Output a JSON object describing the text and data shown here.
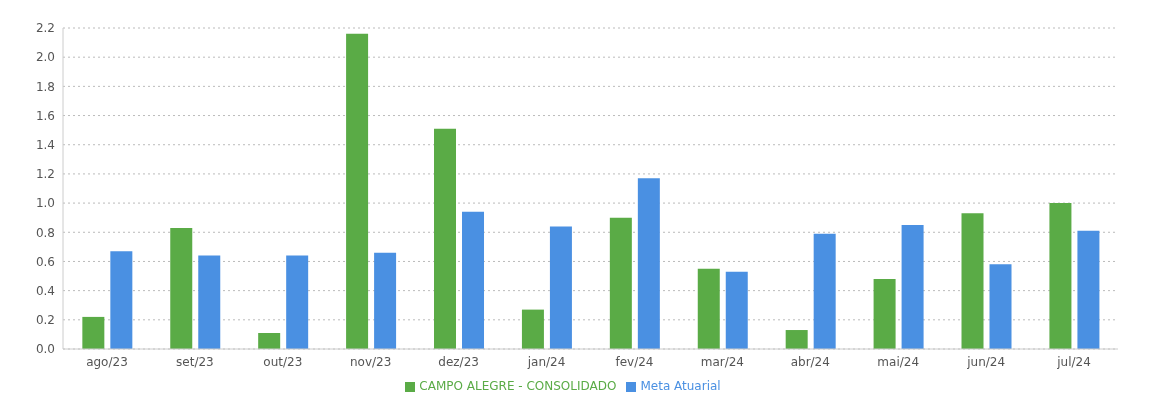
{
  "chart_data": {
    "type": "bar",
    "categories": [
      "ago/23",
      "set/23",
      "out/23",
      "nov/23",
      "dez/23",
      "jan/24",
      "fev/24",
      "mar/24",
      "abr/24",
      "mai/24",
      "jun/24",
      "jul/24"
    ],
    "series": [
      {
        "name": "CAMPO ALEGRE - CONSOLIDADO",
        "color": "#5aab46",
        "values": [
          0.22,
          0.83,
          0.11,
          2.16,
          1.51,
          0.27,
          0.9,
          0.55,
          0.13,
          0.48,
          0.93,
          1.0
        ]
      },
      {
        "name": "Meta Atuarial",
        "color": "#4a90e2",
        "values": [
          0.67,
          0.64,
          0.64,
          0.66,
          0.94,
          0.84,
          1.17,
          0.53,
          0.79,
          0.85,
          0.58,
          0.81
        ]
      }
    ],
    "ylim": [
      0,
      2.2
    ],
    "yticks": [
      {
        "value": 0,
        "label": "0.0"
      },
      {
        "value": 0.2,
        "label": "0.2"
      },
      {
        "value": 0.4,
        "label": "0.4"
      },
      {
        "value": 0.6,
        "label": "0.6"
      },
      {
        "value": 0.8,
        "label": "0.8"
      },
      {
        "value": 1,
        "label": "1.0"
      },
      {
        "value": 1.2,
        "label": "1.2"
      },
      {
        "value": 1.4,
        "label": "1.4"
      },
      {
        "value": 1.6,
        "label": "1.6"
      },
      {
        "value": 1.8,
        "label": "1.8"
      },
      {
        "value": 2,
        "label": "2.0"
      },
      {
        "value": 2.2,
        "label": "2.2"
      }
    ],
    "grid": "y",
    "legend": "bottom"
  }
}
